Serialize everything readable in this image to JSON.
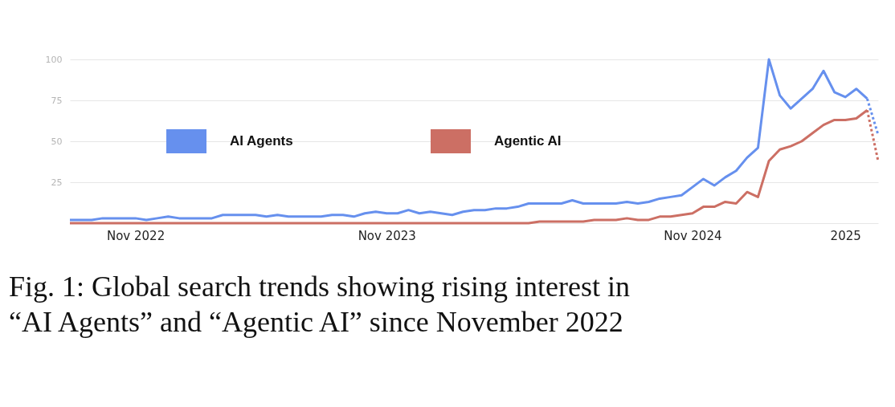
{
  "chart_data": {
    "type": "line",
    "annotations": [
      "Fig. 1: Global search trends showing rising interest in “AI Agents” and “Agentic AI” since November 2022"
    ],
    "categories": [
      null,
      null,
      null,
      null,
      null,
      null,
      "Nov 2022",
      null,
      null,
      null,
      null,
      null,
      null,
      null,
      null,
      null,
      null,
      null,
      null,
      null,
      null,
      null,
      null,
      null,
      null,
      null,
      null,
      null,
      null,
      "Nov 2023",
      null,
      null,
      null,
      null,
      null,
      null,
      null,
      null,
      null,
      null,
      null,
      null,
      null,
      null,
      null,
      null,
      null,
      null,
      null,
      null,
      null,
      null,
      null,
      null,
      null,
      null,
      null,
      "Nov 2024",
      null,
      null,
      null,
      null,
      null,
      null,
      null,
      null,
      null,
      null,
      null,
      null,
      null,
      "2025",
      null,
      null,
      null
    ],
    "ylim": [
      0,
      100
    ],
    "yticks": [
      {
        "value": 0,
        "label": null
      },
      25,
      50,
      75,
      100
    ],
    "grid": "y",
    "legend": "top left",
    "series": [
      {
        "name": "AI Agents",
        "color": "#6690ee",
        "line_style": "solid",
        "values": [
          2,
          2,
          2,
          3,
          3,
          3,
          3,
          2,
          3,
          4,
          3,
          3,
          3,
          3,
          5,
          5,
          5,
          5,
          4,
          5,
          4,
          4,
          4,
          4,
          5,
          5,
          4,
          6,
          7,
          6,
          6,
          8,
          6,
          7,
          6,
          5,
          7,
          8,
          8,
          9,
          9,
          10,
          12,
          12,
          12,
          12,
          14,
          12,
          12,
          12,
          12,
          13,
          12,
          13,
          15,
          16,
          17,
          22,
          27,
          23,
          28,
          32,
          40,
          46,
          100,
          78,
          70,
          76,
          82,
          93,
          80,
          77,
          82,
          76,
          null
        ]
      },
      {
        "color": "#6690ee",
        "line_style": "dotted",
        "values": [
          null,
          null,
          null,
          null,
          null,
          null,
          null,
          null,
          null,
          null,
          null,
          null,
          null,
          null,
          null,
          null,
          null,
          null,
          null,
          null,
          null,
          null,
          null,
          null,
          null,
          null,
          null,
          null,
          null,
          null,
          null,
          null,
          null,
          null,
          null,
          null,
          null,
          null,
          null,
          null,
          null,
          null,
          null,
          null,
          null,
          null,
          null,
          null,
          null,
          null,
          null,
          null,
          null,
          null,
          null,
          null,
          null,
          null,
          null,
          null,
          null,
          null,
          null,
          null,
          null,
          null,
          null,
          null,
          null,
          null,
          null,
          null,
          null,
          76,
          54
        ]
      },
      {
        "name": "Agentic AI",
        "color": "#cc6f64",
        "line_style": "solid",
        "values": [
          0,
          0,
          0,
          0,
          0,
          0,
          0,
          0,
          0,
          0,
          0,
          0,
          0,
          0,
          0,
          0,
          0,
          0,
          0,
          0,
          0,
          0,
          0,
          0,
          0,
          0,
          0,
          0,
          0,
          0,
          0,
          0,
          0,
          0,
          0,
          0,
          0,
          0,
          0,
          0,
          0,
          0,
          0,
          1,
          1,
          1,
          1,
          1,
          2,
          2,
          2,
          3,
          2,
          2,
          4,
          4,
          5,
          6,
          10,
          10,
          13,
          12,
          19,
          16,
          38,
          45,
          47,
          50,
          55,
          60,
          63,
          63,
          64,
          69,
          null
        ]
      },
      {
        "color": "#cc6f64",
        "line_style": "dotted",
        "values": [
          null,
          null,
          null,
          null,
          null,
          null,
          null,
          null,
          null,
          null,
          null,
          null,
          null,
          null,
          null,
          null,
          null,
          null,
          null,
          null,
          null,
          null,
          null,
          null,
          null,
          null,
          null,
          null,
          null,
          null,
          null,
          null,
          null,
          null,
          null,
          null,
          null,
          null,
          null,
          null,
          null,
          null,
          null,
          null,
          null,
          null,
          null,
          null,
          null,
          null,
          null,
          null,
          null,
          null,
          null,
          null,
          null,
          null,
          null,
          null,
          null,
          null,
          null,
          null,
          null,
          null,
          null,
          null,
          null,
          null,
          null,
          null,
          null,
          69,
          38
        ]
      }
    ]
  }
}
